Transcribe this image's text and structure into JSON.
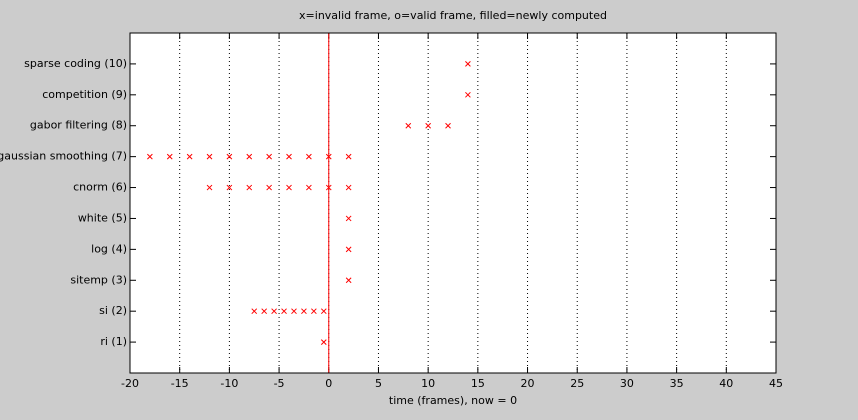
{
  "chart_data": {
    "type": "scatter",
    "title": "x=invalid frame, o=valid frame, filled=newly computed",
    "xlabel": "time (frames), now = 0",
    "series": [
      {
        "color": "#ff0000",
        "marker": "x",
        "x": [
          14,
          14,
          8,
          10,
          12,
          -18,
          -16,
          -14,
          -12,
          -10,
          -8,
          -6,
          -4,
          -2,
          0,
          2,
          -12,
          -10,
          -8,
          -6,
          -4,
          -2,
          0,
          2,
          2,
          2,
          2,
          -7.5,
          -6.5,
          -5.5,
          -4.5,
          -3.5,
          -2.5,
          -1.5,
          -0.5,
          -0.5
        ],
        "y": [
          10,
          9,
          8,
          8,
          8,
          7,
          7,
          7,
          7,
          7,
          7,
          7,
          7,
          7,
          7,
          7,
          6,
          6,
          6,
          6,
          6,
          6,
          6,
          6,
          5,
          4,
          3,
          2,
          2,
          2,
          2,
          2,
          2,
          2,
          2,
          1
        ]
      }
    ],
    "now_line": {
      "x": 0,
      "color": "#ff0000"
    },
    "xlim": [
      -20,
      45
    ],
    "xticks": [
      -20,
      -15,
      -10,
      -5,
      0,
      5,
      10,
      15,
      20,
      25,
      30,
      35,
      40,
      45
    ],
    "ylim": [
      0,
      11
    ],
    "yticks": [
      {
        "value": 1,
        "label": "ri (1)"
      },
      {
        "value": 2,
        "label": "si (2)"
      },
      {
        "value": 3,
        "label": "sitemp (3)"
      },
      {
        "value": 4,
        "label": "log (4)"
      },
      {
        "value": 5,
        "label": "white (5)"
      },
      {
        "value": 6,
        "label": "cnorm (6)"
      },
      {
        "value": 7,
        "label": "gaussian smoothing (7)"
      },
      {
        "value": 8,
        "label": "gabor filtering (8)"
      },
      {
        "value": 9,
        "label": "competition (9)"
      },
      {
        "value": 10,
        "label": "sparse coding (10)"
      }
    ],
    "xgrid": true
  }
}
